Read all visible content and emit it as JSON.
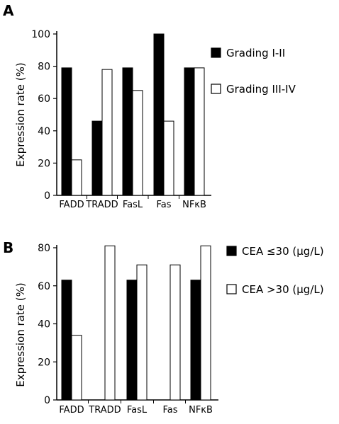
{
  "chart_data": [
    {
      "type": "bar",
      "panel": "A",
      "categories": [
        "FADD",
        "TRADD",
        "FasL",
        "Fas",
        "NFκB"
      ],
      "series": [
        {
          "name": "Grading I-II",
          "color": "#000000",
          "values": [
            79,
            46,
            79,
            100,
            79
          ]
        },
        {
          "name": "Grading III-IV",
          "color": "#ffffff",
          "values": [
            22,
            78,
            65,
            46,
            79
          ]
        }
      ],
      "ylabel": "Expression rate (%)",
      "ylim": [
        0,
        100
      ],
      "yticks": [
        "0",
        "20",
        "40",
        "60",
        "80",
        "100"
      ],
      "legend_position": "right",
      "grid": false
    },
    {
      "type": "bar",
      "panel": "B",
      "categories": [
        "FADD",
        "TRADD",
        "FasL",
        "Fas",
        "NFκB"
      ],
      "series": [
        {
          "name": "CEA ≤30 (μg/L)",
          "color": "#000000",
          "values": [
            63,
            0,
            63,
            0,
            63
          ]
        },
        {
          "name": "CEA >30 (μg/L)",
          "color": "#ffffff",
          "values": [
            34,
            81,
            71,
            71,
            81
          ]
        }
      ],
      "ylabel": "Expression rate (%)",
      "ylim": [
        0,
        80
      ],
      "yticks": [
        "0",
        "20",
        "40",
        "60",
        "80"
      ],
      "legend_position": "right",
      "grid": false
    }
  ]
}
